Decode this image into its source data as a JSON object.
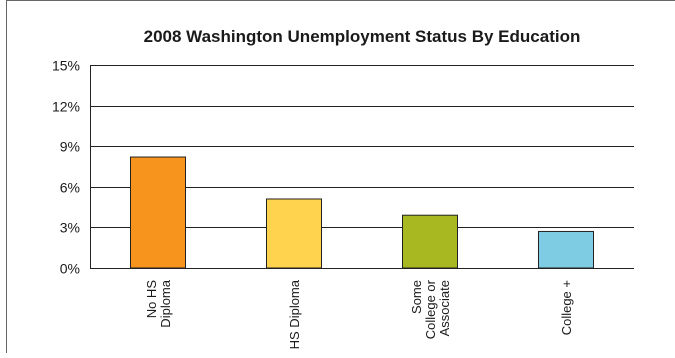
{
  "chart_data": {
    "type": "bar",
    "title": "2008 Washington Unemployment Status By Education",
    "xlabel": "",
    "ylabel": "",
    "categories": [
      [
        "No HS",
        "Diploma"
      ],
      [
        "HS Diploma"
      ],
      [
        "Some",
        "College or",
        "Associate"
      ],
      [
        "College +"
      ]
    ],
    "values": [
      8.2,
      5.1,
      3.9,
      2.7
    ],
    "bar_colors": [
      "#f7941d",
      "#ffd34e",
      "#a8b820",
      "#7ecce3"
    ],
    "ylim": [
      0,
      15
    ],
    "yticks": [
      0,
      3,
      6,
      9,
      12,
      15
    ],
    "ytick_labels": [
      "0%",
      "3%",
      "6%",
      "9%",
      "12%",
      "15%"
    ],
    "grid": true,
    "legend": "none"
  }
}
